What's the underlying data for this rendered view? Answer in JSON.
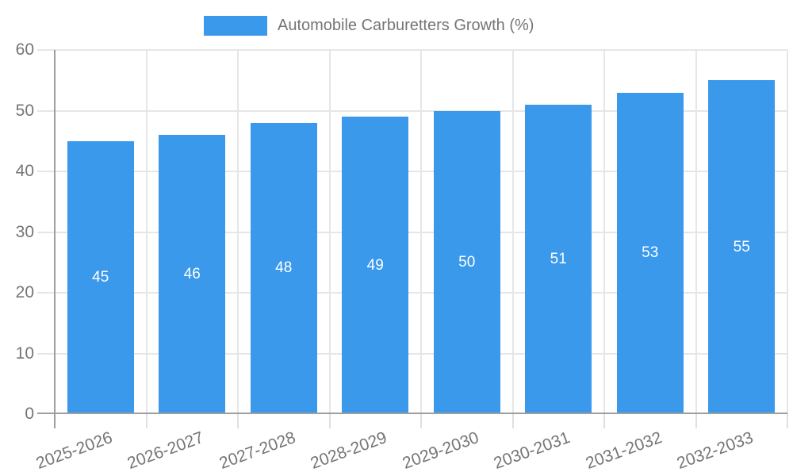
{
  "chart_data": {
    "type": "bar",
    "title": "",
    "legend": "Automobile Carburetters Growth (%)",
    "legend_position": "top",
    "categories": [
      "2025-2026",
      "2026-2027",
      "2027-2028",
      "2028-2029",
      "2029-2030",
      "2030-2031",
      "2031-2032",
      "2032-2033"
    ],
    "values": [
      45,
      46,
      48,
      49,
      50,
      51,
      53,
      55
    ],
    "xlabel": "",
    "ylabel": "",
    "ylim": [
      0,
      60
    ],
    "yticks": [
      0,
      10,
      20,
      30,
      40,
      50,
      60
    ],
    "grid": true,
    "value_labels_shown": true,
    "colors": {
      "bar": "#3b99ec",
      "grid": "#e6e6e6",
      "axis": "#9e9e9e",
      "tick_text": "#757575",
      "value_label": "#ffffff",
      "background": "#ffffff"
    }
  }
}
